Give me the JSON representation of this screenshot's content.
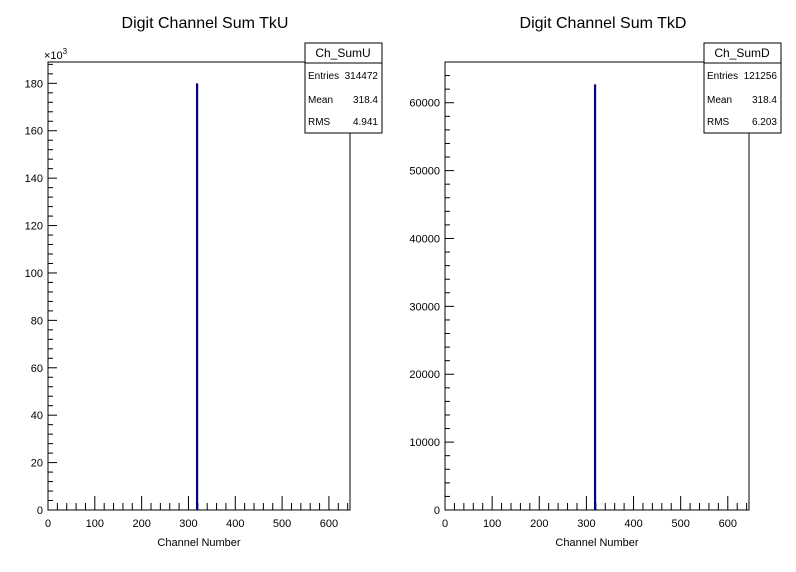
{
  "chart_data": [
    {
      "type": "bar",
      "title": "Digit Channel Sum TkU",
      "xlabel": "Channel Number",
      "ylabel": "",
      "xlim": [
        0,
        645
      ],
      "ylim": [
        0,
        189000
      ],
      "multiplier_label": "×10",
      "multiplier_exp": "3",
      "x_ticks": [
        "0",
        "100",
        "200",
        "300",
        "400",
        "500",
        "600"
      ],
      "y_ticks": [
        "0",
        "20",
        "40",
        "60",
        "80",
        "100",
        "120",
        "140",
        "160",
        "180"
      ],
      "bars": [
        {
          "x": 318.4,
          "value": 180000
        }
      ],
      "stats": {
        "name": "Ch_SumU",
        "rows": [
          {
            "label": "Entries",
            "value": "314472"
          },
          {
            "label": "Mean",
            "value": "318.4"
          },
          {
            "label": "RMS",
            "value": "4.941"
          }
        ]
      }
    },
    {
      "type": "bar",
      "title": "Digit Channel Sum TkD",
      "xlabel": "Channel Number",
      "ylabel": "",
      "xlim": [
        0,
        645
      ],
      "ylim": [
        0,
        66000
      ],
      "x_ticks": [
        "0",
        "100",
        "200",
        "300",
        "400",
        "500",
        "600"
      ],
      "y_ticks": [
        "0",
        "10000",
        "20000",
        "30000",
        "40000",
        "50000",
        "60000"
      ],
      "bars": [
        {
          "x": 318.4,
          "value": 62700
        }
      ],
      "stats": {
        "name": "Ch_SumD",
        "rows": [
          {
            "label": "Entries",
            "value": "121256"
          },
          {
            "label": "Mean",
            "value": "318.4"
          },
          {
            "label": "RMS",
            "value": "6.203"
          }
        ]
      }
    }
  ]
}
